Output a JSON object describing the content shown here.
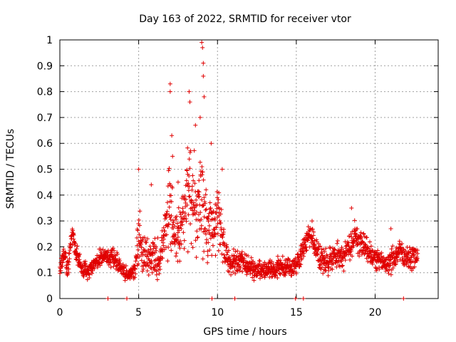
{
  "chart_data": {
    "type": "scatter",
    "title": "Day 163 of 2022, SRMTID for receiver vtor",
    "xlabel": "GPS time / hours",
    "ylabel": "SRMTID / TECUs",
    "xlim": [
      0,
      24
    ],
    "ylim": [
      0,
      1
    ],
    "xticks": [
      0,
      5,
      10,
      15,
      20
    ],
    "yticks": [
      0,
      0.1,
      0.2,
      0.3,
      0.4,
      0.5,
      0.6,
      0.7,
      0.8,
      0.9,
      1
    ],
    "grid": true,
    "marker": "plus",
    "series": [
      {
        "name": "SRMTID",
        "color": "#e00000",
        "profile_x": [
          0.0,
          0.25,
          0.5,
          0.75,
          0.85,
          1.0,
          1.25,
          1.5,
          1.75,
          2.0,
          2.5,
          3.0,
          3.5,
          4.0,
          4.3,
          4.6,
          4.8,
          5.0,
          5.2,
          5.5,
          5.75,
          6.0,
          6.25,
          6.5,
          6.75,
          7.0,
          7.25,
          7.5,
          7.75,
          8.0,
          8.25,
          8.5,
          8.75,
          9.0,
          9.25,
          9.5,
          9.75,
          10.0,
          10.25,
          10.5,
          10.75,
          11.0,
          11.5,
          12.0,
          12.5,
          13.0,
          13.5,
          14.0,
          14.5,
          15.0,
          15.5,
          15.9,
          16.5,
          17.0,
          17.5,
          18.0,
          18.5,
          18.75,
          19.0,
          19.5,
          20.0,
          20.5,
          21.0,
          21.5,
          22.0,
          22.5,
          22.7
        ],
        "profile_center": [
          0.12,
          0.17,
          0.12,
          0.24,
          0.25,
          0.18,
          0.14,
          0.11,
          0.1,
          0.12,
          0.16,
          0.17,
          0.15,
          0.11,
          0.09,
          0.1,
          0.12,
          0.25,
          0.18,
          0.17,
          0.15,
          0.18,
          0.13,
          0.2,
          0.3,
          0.35,
          0.25,
          0.22,
          0.3,
          0.35,
          0.45,
          0.38,
          0.3,
          0.4,
          0.28,
          0.3,
          0.25,
          0.33,
          0.25,
          0.17,
          0.14,
          0.14,
          0.15,
          0.12,
          0.11,
          0.11,
          0.11,
          0.12,
          0.12,
          0.13,
          0.2,
          0.25,
          0.15,
          0.14,
          0.17,
          0.16,
          0.2,
          0.25,
          0.21,
          0.2,
          0.16,
          0.14,
          0.14,
          0.18,
          0.16,
          0.16,
          0.16
        ],
        "profile_spread": [
          0.03,
          0.04,
          0.05,
          0.04,
          0.03,
          0.04,
          0.04,
          0.04,
          0.03,
          0.03,
          0.04,
          0.04,
          0.04,
          0.03,
          0.02,
          0.03,
          0.04,
          0.12,
          0.1,
          0.08,
          0.08,
          0.09,
          0.08,
          0.08,
          0.12,
          0.22,
          0.15,
          0.12,
          0.15,
          0.18,
          0.22,
          0.25,
          0.2,
          0.3,
          0.15,
          0.15,
          0.12,
          0.14,
          0.12,
          0.06,
          0.05,
          0.05,
          0.05,
          0.04,
          0.04,
          0.04,
          0.04,
          0.04,
          0.04,
          0.04,
          0.06,
          0.05,
          0.05,
          0.05,
          0.06,
          0.06,
          0.06,
          0.07,
          0.06,
          0.06,
          0.05,
          0.04,
          0.05,
          0.05,
          0.05,
          0.05,
          0.05
        ],
        "outliers": [
          {
            "x": 5.0,
            "y": 0.5
          },
          {
            "x": 5.8,
            "y": 0.44
          },
          {
            "x": 7.0,
            "y": 0.83
          },
          {
            "x": 7.0,
            "y": 0.8
          },
          {
            "x": 7.1,
            "y": 0.63
          },
          {
            "x": 7.15,
            "y": 0.55
          },
          {
            "x": 7.5,
            "y": 0.45
          },
          {
            "x": 8.2,
            "y": 0.8
          },
          {
            "x": 8.25,
            "y": 0.76
          },
          {
            "x": 8.6,
            "y": 0.67
          },
          {
            "x": 8.9,
            "y": 0.7
          },
          {
            "x": 9.0,
            "y": 0.99
          },
          {
            "x": 9.05,
            "y": 0.97
          },
          {
            "x": 9.1,
            "y": 0.91
          },
          {
            "x": 9.1,
            "y": 0.86
          },
          {
            "x": 9.15,
            "y": 0.78
          },
          {
            "x": 9.6,
            "y": 0.6
          },
          {
            "x": 10.3,
            "y": 0.5
          },
          {
            "x": 18.5,
            "y": 0.35
          },
          {
            "x": 21.0,
            "y": 0.27
          },
          {
            "x": 16.0,
            "y": 0.3
          }
        ],
        "zero_points_x": [
          3.05,
          4.25,
          9.65,
          11.1,
          14.95,
          15.45,
          21.8
        ]
      }
    ]
  }
}
